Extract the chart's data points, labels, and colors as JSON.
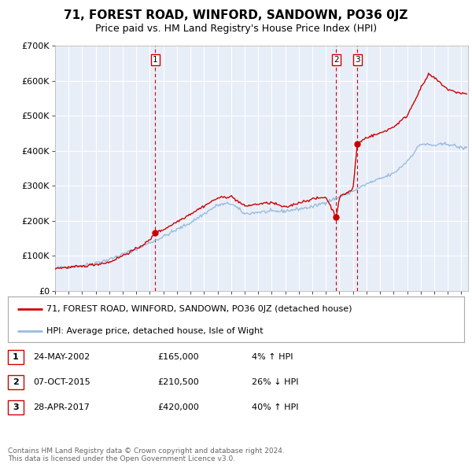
{
  "title": "71, FOREST ROAD, WINFORD, SANDOWN, PO36 0JZ",
  "subtitle": "Price paid vs. HM Land Registry's House Price Index (HPI)",
  "legend_line1": "71, FOREST ROAD, WINFORD, SANDOWN, PO36 0JZ (detached house)",
  "legend_line2": "HPI: Average price, detached house, Isle of Wight",
  "ylim": [
    0,
    700000
  ],
  "yticks": [
    0,
    100000,
    200000,
    300000,
    400000,
    500000,
    600000,
    700000
  ],
  "ytick_labels": [
    "£0",
    "£100K",
    "£200K",
    "£300K",
    "£400K",
    "£500K",
    "£600K",
    "£700K"
  ],
  "xlim_start": 1995.0,
  "xlim_end": 2025.5,
  "price_paid_color": "#cc0000",
  "hpi_color": "#99bbdd",
  "vline_color": "#cc0000",
  "sale_marker_color": "#cc0000",
  "transactions": [
    {
      "label": "1",
      "date_decimal": 2002.39,
      "price": 165000,
      "pct": "4%",
      "direction": "↑",
      "date_str": "24-MAY-2002"
    },
    {
      "label": "2",
      "date_decimal": 2015.76,
      "price": 210500,
      "pct": "26%",
      "direction": "↓",
      "date_str": "07-OCT-2015"
    },
    {
      "label": "3",
      "date_decimal": 2017.32,
      "price": 420000,
      "pct": "40%",
      "direction": "↑",
      "date_str": "28-APR-2017"
    }
  ],
  "footer_line1": "Contains HM Land Registry data © Crown copyright and database right 2024.",
  "footer_line2": "This data is licensed under the Open Government Licence v3.0.",
  "plot_bg_color": "#e8eef8",
  "grid_color": "#ffffff"
}
